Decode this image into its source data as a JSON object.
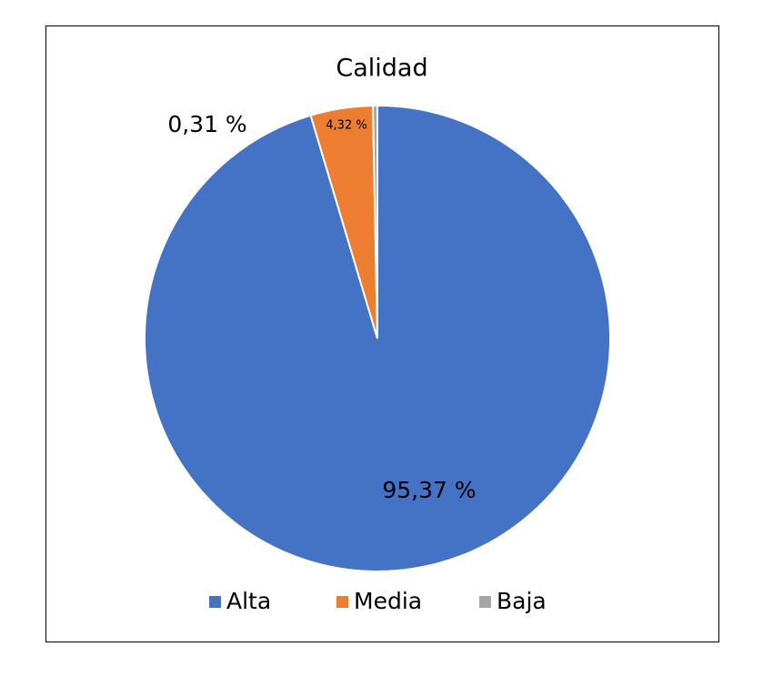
{
  "chart_data": {
    "type": "pie",
    "title": "Calidad",
    "categories": [
      "Alta",
      "Media",
      "Baja"
    ],
    "values": [
      95.37,
      4.32,
      0.31
    ],
    "value_labels": [
      "95,37 %",
      "4,32 %",
      "0,31 %"
    ],
    "colors": [
      "#4472c4",
      "#ed7d31",
      "#a5a5a5"
    ],
    "legend": "bottom"
  }
}
